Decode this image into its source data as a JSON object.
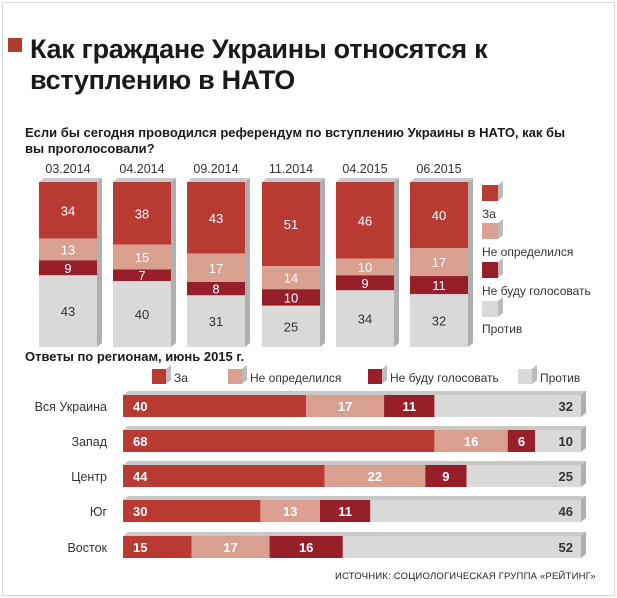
{
  "title": "Как граждане Украины относятся к вступлению в НАТО",
  "question": "Если бы сегодня проводился референдум по вступлению Украины в НАТО, как бы вы проголосовали?",
  "regions_title": "Ответы по регионам, июнь 2015 г.",
  "source": "ИСТОЧНИК: СОЦИОЛОГИЧЕСКАЯ ГРУППА «РЕЙТИНГ»",
  "colors": {
    "za": "#b83a33",
    "neopr": "#d9a08f",
    "nebudu": "#961f2a",
    "protiv": "#d9d9d9"
  },
  "chart_data": [
    {
      "type": "bar",
      "stacked": true,
      "orientation": "vertical",
      "categories": [
        "03.2014",
        "04.2014",
        "09.2014",
        "11.2014",
        "04.2015",
        "06.2015"
      ],
      "series": [
        {
          "name": "За",
          "values": [
            34,
            38,
            43,
            51,
            46,
            40
          ]
        },
        {
          "name": "Не определился",
          "values": [
            13,
            15,
            17,
            14,
            10,
            17
          ]
        },
        {
          "name": "Не буду голосовать",
          "values": [
            9,
            7,
            8,
            10,
            9,
            11
          ]
        },
        {
          "name": "Против",
          "values": [
            43,
            40,
            31,
            25,
            34,
            32
          ]
        }
      ],
      "legend": "right"
    },
    {
      "type": "bar",
      "stacked": true,
      "orientation": "horizontal",
      "categories": [
        "Вся Украина",
        "Запад",
        "Центр",
        "Юг",
        "Восток"
      ],
      "series": [
        {
          "name": "За",
          "values": [
            40,
            68,
            44,
            30,
            15
          ]
        },
        {
          "name": "Не определился",
          "values": [
            17,
            16,
            22,
            13,
            17
          ]
        },
        {
          "name": "Не буду голосовать",
          "values": [
            11,
            6,
            9,
            11,
            16
          ]
        },
        {
          "name": "Против",
          "values": [
            32,
            10,
            25,
            46,
            52
          ]
        }
      ],
      "legend": "top"
    }
  ]
}
